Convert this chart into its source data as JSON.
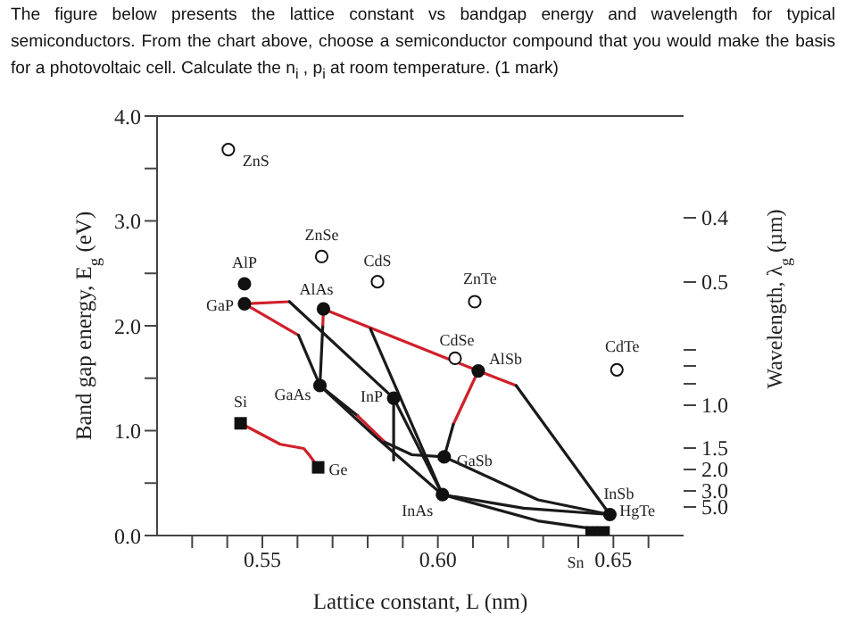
{
  "chart_data": {
    "type": "line",
    "title": "The figure below presents the lattice constant vs bandgap energy and wavelength for typical semiconductors. From the chart above, choose a semiconductor compound that you would make the basis for a photovoltaic cell. Calculate the n$_{i}$ , p$_{i}$ at room temperature.  (1 mark)",
    "xlabel": "Lattice constant, L (nm)",
    "ylabel": "Band gap energy, E$_{g}$ (eV)",
    "y2label": "Wavelength, λ$_{g}$ (µm)",
    "xlim": [
      0.52,
      0.67
    ],
    "xticks": [
      {
        "value": 0.53,
        "label": null
      },
      {
        "value": 0.54,
        "label": null
      },
      {
        "value": 0.55,
        "label": "0.55"
      },
      {
        "value": 0.56,
        "label": null
      },
      {
        "value": 0.57,
        "label": null
      },
      {
        "value": 0.58,
        "label": null
      },
      {
        "value": 0.59,
        "label": null
      },
      {
        "value": 0.6,
        "label": "0.60"
      },
      {
        "value": 0.61,
        "label": null
      },
      {
        "value": 0.62,
        "label": null
      },
      {
        "value": 0.63,
        "label": null
      },
      {
        "value": 0.64,
        "label": null
      },
      {
        "value": 0.65,
        "label": "0.65"
      },
      {
        "value": 0.66,
        "label": null
      }
    ],
    "ylim": [
      0,
      4
    ],
    "yticks": [
      {
        "value": 0,
        "label": "0.0"
      },
      {
        "value": 0.5,
        "label": null
      },
      {
        "value": 1,
        "label": "1.0"
      },
      {
        "value": 1.5,
        "label": null
      },
      {
        "value": 2,
        "label": "2.0"
      },
      {
        "value": 2.5,
        "label": null
      },
      {
        "value": 3,
        "label": "3.0"
      },
      {
        "value": 3.5,
        "label": null
      },
      {
        "value": 4,
        "label": "4.0"
      }
    ],
    "grid": false,
    "line_style": "solid",
    "series": [
      {
        "color": "#d0202a",
        "x": [
          0.5438,
          0.5551,
          0.5618,
          0.5633,
          0.5659
        ],
        "values": [
          1.07,
          0.87,
          0.83,
          0.77,
          0.65
        ]
      },
      {
        "color": "#d0202a",
        "x": [
          0.5449,
          0.5577
        ],
        "values": [
          2.21,
          2.23
        ]
      },
      {
        "color": "#1a1a1a",
        "x": [
          0.5577,
          0.5874
        ],
        "values": [
          2.23,
          1.31
        ]
      },
      {
        "color": "#d0202a",
        "x": [
          0.5449,
          0.5603
        ],
        "values": [
          2.21,
          1.91
        ]
      },
      {
        "color": "#1a1a1a",
        "x": [
          0.5603,
          0.5664
        ],
        "values": [
          1.91,
          1.43
        ]
      },
      {
        "color": "#d0202a",
        "x": [
          0.5674,
          0.5672
        ],
        "values": [
          2.16,
          1.99
        ]
      },
      {
        "color": "#1a1a1a",
        "x": [
          0.5672,
          0.5664
        ],
        "values": [
          1.99,
          1.43
        ]
      },
      {
        "color": "#d0202a",
        "x": [
          0.5674,
          0.6115,
          0.6223
        ],
        "values": [
          2.16,
          1.57,
          1.43
        ]
      },
      {
        "color": "#1a1a1a",
        "x": [
          0.6223,
          0.649
        ],
        "values": [
          1.43,
          0.2
        ]
      },
      {
        "color": "#d0202a",
        "x": [
          0.6115,
          0.6044
        ],
        "values": [
          1.57,
          1.06
        ]
      },
      {
        "color": "#1a1a1a",
        "x": [
          0.6044,
          0.6018
        ],
        "values": [
          1.06,
          0.75
        ]
      },
      {
        "color": "#1a1a1a",
        "x": [
          0.5808,
          0.6013
        ],
        "values": [
          1.97,
          0.39
        ]
      },
      {
        "color": "#1a1a1a",
        "x": [
          0.5874,
          0.5874
        ],
        "values": [
          1.31,
          0.72
        ]
      },
      {
        "color": "#1a1a1a",
        "x": [
          0.5874,
          0.6013
        ],
        "values": [
          1.31,
          0.39
        ]
      },
      {
        "color": "#1a1a1a",
        "x": [
          0.5664,
          0.5772
        ],
        "values": [
          1.43,
          1.14
        ]
      },
      {
        "color": "#d0202a",
        "x": [
          0.5772,
          0.5849
        ],
        "values": [
          1.14,
          0.89
        ]
      },
      {
        "color": "#1a1a1a",
        "x": [
          0.5849,
          0.5926,
          0.6018
        ],
        "values": [
          0.89,
          0.77,
          0.75
        ]
      },
      {
        "color": "#1a1a1a",
        "x": [
          0.5664,
          0.5823,
          0.6013,
          0.6285,
          0.6472
        ],
        "values": [
          1.43,
          0.94,
          0.39,
          0.14,
          0.05
        ]
      },
      {
        "color": "#1a1a1a",
        "x": [
          0.6018,
          0.6285,
          0.649
        ],
        "values": [
          0.75,
          0.34,
          0.2
        ]
      },
      {
        "color": "#1a1a1a",
        "x": [
          0.6013,
          0.6244,
          0.649
        ],
        "values": [
          0.39,
          0.26,
          0.2
        ]
      },
      {
        "type": "scatter",
        "marker": "circle",
        "color": "#111111",
        "x": [
          0.5449,
          0.5449,
          0.5674,
          0.5664,
          0.5874,
          0.6018,
          0.6115,
          0.6013,
          0.649
        ],
        "values": [
          2.4,
          2.21,
          2.16,
          1.43,
          1.31,
          0.75,
          1.57,
          0.39,
          0.2
        ]
      },
      {
        "type": "scatter",
        "marker": "circle",
        "color": "#ffffff",
        "x": [
          0.5403,
          0.5669,
          0.5828,
          0.6105,
          0.6049,
          0.651
        ],
        "values": [
          3.68,
          2.66,
          2.42,
          2.23,
          1.69,
          1.58
        ]
      },
      {
        "type": "scatter",
        "marker": "square",
        "color": "#111111",
        "x": [
          0.5438,
          0.5659,
          0.6438,
          0.6472
        ],
        "values": [
          1.07,
          0.65,
          0.03,
          0.03
        ]
      }
    ],
    "annotations": [
      {
        "text": "ZnS",
        "x": 0.5403,
        "y": 3.68
      },
      {
        "text": "AlP",
        "x": 0.5449,
        "y": 2.4
      },
      {
        "text": "GaP",
        "x": 0.5449,
        "y": 2.21
      },
      {
        "text": "ZnSe",
        "x": 0.5669,
        "y": 2.66
      },
      {
        "text": "AlAs",
        "x": 0.5674,
        "y": 2.16
      },
      {
        "text": "CdS",
        "x": 0.5828,
        "y": 2.42
      },
      {
        "text": "ZnTe",
        "x": 0.6105,
        "y": 2.23
      },
      {
        "text": "CdSe",
        "x": 0.6049,
        "y": 1.69
      },
      {
        "text": "AlSb",
        "x": 0.6115,
        "y": 1.57
      },
      {
        "text": "CdTe",
        "x": 0.651,
        "y": 1.58
      },
      {
        "text": "GaAs",
        "x": 0.5664,
        "y": 1.43
      },
      {
        "text": "InP",
        "x": 0.5874,
        "y": 1.31
      },
      {
        "text": "GaSb",
        "x": 0.6018,
        "y": 0.75
      },
      {
        "text": "InAs",
        "x": 0.6013,
        "y": 0.39
      },
      {
        "text": "InSb",
        "x": 0.649,
        "y": 0.2
      },
      {
        "text": "HgTe",
        "x": 0.6472,
        "y": 0.03
      },
      {
        "text": "Sn",
        "x": 0.6438,
        "y": 0.03
      },
      {
        "text": "Si",
        "x": 0.5438,
        "y": 1.07
      },
      {
        "text": "Ge",
        "x": 0.5659,
        "y": 0.65
      },
      "0.4",
      "0.5",
      "1.0",
      "1.5",
      "2.0",
      "3.0",
      "5.0"
    ]
  }
}
